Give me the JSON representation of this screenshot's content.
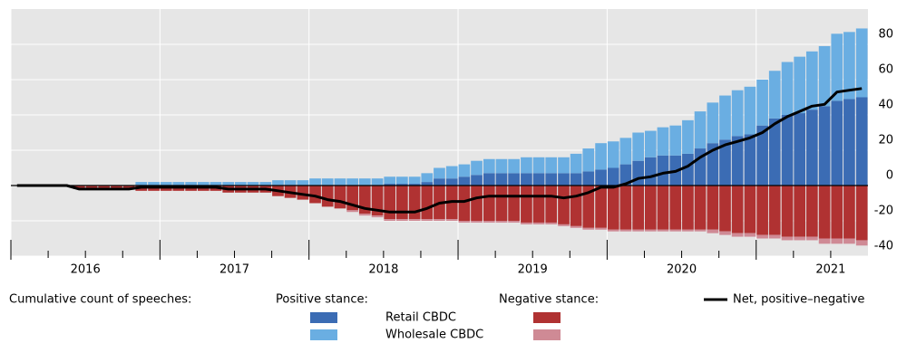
{
  "chart_data": {
    "type": "bar",
    "x": [
      2016,
      2016.083,
      2016.167,
      2016.25,
      2016.333,
      2016.417,
      2016.5,
      2016.583,
      2016.667,
      2016.75,
      2016.833,
      2016.917,
      2017,
      2017.083,
      2017.167,
      2017.25,
      2017.333,
      2017.417,
      2017.5,
      2017.583,
      2017.667,
      2017.75,
      2017.833,
      2017.917,
      2018,
      2018.083,
      2018.167,
      2018.25,
      2018.333,
      2018.417,
      2018.5,
      2018.583,
      2018.667,
      2018.75,
      2018.833,
      2018.917,
      2019,
      2019.083,
      2019.167,
      2019.25,
      2019.333,
      2019.417,
      2019.5,
      2019.583,
      2019.667,
      2019.75,
      2019.833,
      2019.917,
      2020,
      2020.083,
      2020.167,
      2020.25,
      2020.333,
      2020.417,
      2020.5,
      2020.583,
      2020.667,
      2020.75,
      2020.833,
      2020.917,
      2021,
      2021.083,
      2021.167,
      2021.25,
      2021.333,
      2021.417,
      2021.5,
      2021.583,
      2021.667
    ],
    "xlim": [
      2016,
      2021.75
    ],
    "xticks": [
      2016,
      2017,
      2018,
      2019,
      2020,
      2021
    ],
    "ylim": [
      -40,
      100
    ],
    "yticks": [
      -40,
      -20,
      0,
      20,
      40,
      60,
      80
    ],
    "grid": true,
    "legend": {
      "title": "Cumulative count of speeches:"
    },
    "stances": [
      {
        "label": "Positive stance:",
        "series": [
          {
            "name": "Retail CBDC",
            "color": "#3b6cb4",
            "values": [
              0,
              0,
              0,
              0,
              0,
              0,
              0,
              0,
              0,
              0,
              0,
              0,
              0,
              0,
              0,
              0,
              0,
              0,
              0,
              0,
              0,
              0,
              0,
              0,
              0,
              0,
              0,
              0,
              0,
              0,
              1,
              1,
              1,
              2,
              4,
              4,
              5,
              6,
              7,
              7,
              7,
              7,
              7,
              7,
              7,
              7,
              8,
              9,
              10,
              12,
              14,
              16,
              17,
              17,
              18,
              21,
              24,
              26,
              28,
              29,
              34,
              38,
              40,
              41,
              43,
              45,
              48,
              49,
              50
            ]
          },
          {
            "name": "Wholesale CBDC",
            "color": "#6aaee2",
            "values": [
              0,
              0,
              0,
              0,
              0,
              0,
              0,
              0,
              0,
              0,
              2,
              2,
              2,
              2,
              2,
              2,
              2,
              2,
              2,
              2,
              2,
              3,
              3,
              3,
              4,
              4,
              4,
              4,
              4,
              4,
              4,
              4,
              4,
              5,
              6,
              7,
              7,
              8,
              8,
              8,
              8,
              9,
              9,
              9,
              9,
              11,
              13,
              15,
              15,
              15,
              16,
              15,
              16,
              17,
              19,
              21,
              23,
              25,
              26,
              27,
              26,
              27,
              30,
              32,
              33,
              34,
              38,
              38,
              39
            ]
          }
        ]
      },
      {
        "label": "Negative stance:",
        "series": [
          {
            "color": "#b03232",
            "values": [
              0,
              0,
              0,
              0,
              0,
              -2,
              -2,
              -2,
              -2,
              -2,
              -3,
              -3,
              -3,
              -3,
              -3,
              -3,
              -3,
              -4,
              -4,
              -4,
              -4,
              -6,
              -7,
              -8,
              -10,
              -12,
              -13,
              -14,
              -16,
              -17,
              -19,
              -19,
              -19,
              -19,
              -19,
              -19,
              -20,
              -20,
              -20,
              -20,
              -20,
              -21,
              -21,
              -21,
              -22,
              -23,
              -24,
              -24,
              -25,
              -25,
              -25,
              -25,
              -25,
              -25,
              -25,
              -25,
              -25,
              -26,
              -27,
              -27,
              -28,
              -28,
              -29,
              -29,
              -29,
              -30,
              -30,
              -30,
              -31
            ]
          },
          {
            "color": "#cf8a95",
            "values": [
              0,
              0,
              0,
              0,
              0,
              0,
              0,
              0,
              0,
              0,
              0,
              0,
              0,
              0,
              0,
              0,
              0,
              0,
              0,
              0,
              0,
              0,
              0,
              0,
              0,
              0,
              0,
              -1,
              -1,
              -1,
              -1,
              -1,
              -1,
              -1,
              -1,
              -1,
              -1,
              -1,
              -1,
              -1,
              -1,
              -1,
              -1,
              -1,
              -1,
              -1,
              -1,
              -1,
              -1,
              -1,
              -1,
              -1,
              -1,
              -1,
              -1,
              -1,
              -2,
              -2,
              -2,
              -2,
              -2,
              -2,
              -2,
              -2,
              -2,
              -3,
              -3,
              -3,
              -3
            ]
          }
        ]
      }
    ],
    "line": {
      "name": "Net, positive–negative",
      "color": "#000000",
      "values": [
        0,
        0,
        0,
        0,
        0,
        -2,
        -2,
        -2,
        -2,
        -2,
        -1,
        -1,
        -1,
        -1,
        -1,
        -1,
        -1,
        -2,
        -2,
        -2,
        -2,
        -3,
        -4,
        -5,
        -6,
        -8,
        -9,
        -11,
        -13,
        -14,
        -15,
        -15,
        -15,
        -13,
        -10,
        -9,
        -9,
        -7,
        -6,
        -6,
        -6,
        -6,
        -6,
        -6,
        -7,
        -6,
        -4,
        -1,
        -1,
        1,
        4,
        5,
        7,
        8,
        11,
        16,
        20,
        23,
        25,
        27,
        30,
        35,
        39,
        42,
        45,
        46,
        53,
        54,
        55
      ]
    }
  }
}
